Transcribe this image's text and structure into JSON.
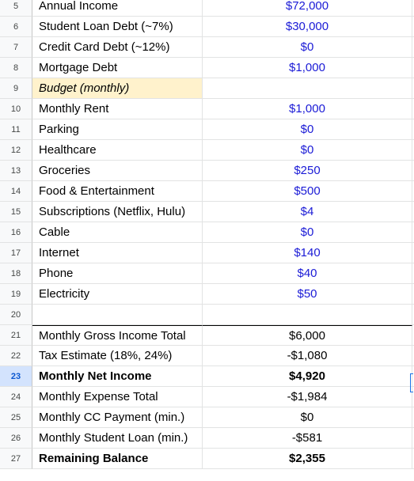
{
  "rows": [
    {
      "num": "5",
      "label": "Annual Income",
      "value": "$72,000",
      "style": "blue"
    },
    {
      "num": "6",
      "label": "Student Loan Debt (~7%)",
      "value": "$30,000",
      "style": "blue"
    },
    {
      "num": "7",
      "label": "Credit Card Debt (~12%)",
      "value": "$0",
      "style": "blue"
    },
    {
      "num": "8",
      "label": "Mortgage Debt",
      "value": "$1,000",
      "style": "blue"
    },
    {
      "num": "9",
      "label": "Budget (monthly)",
      "value": "",
      "style": "header"
    },
    {
      "num": "10",
      "label": "Monthly Rent",
      "value": "$1,000",
      "style": "blue"
    },
    {
      "num": "11",
      "label": "Parking",
      "value": "$0",
      "style": "blue"
    },
    {
      "num": "12",
      "label": "Healthcare",
      "value": "$0",
      "style": "blue"
    },
    {
      "num": "13",
      "label": "Groceries",
      "value": "$250",
      "style": "blue"
    },
    {
      "num": "14",
      "label": "Food & Entertainment",
      "value": "$500",
      "style": "blue"
    },
    {
      "num": "15",
      "label": "Subscriptions (Netflix, Hulu)",
      "value": "$4",
      "style": "blue"
    },
    {
      "num": "16",
      "label": "Cable",
      "value": "$0",
      "style": "blue"
    },
    {
      "num": "17",
      "label": "Internet",
      "value": "$140",
      "style": "blue"
    },
    {
      "num": "18",
      "label": "Phone",
      "value": "$40",
      "style": "blue"
    },
    {
      "num": "19",
      "label": "Electricity",
      "value": "$50",
      "style": "blue"
    },
    {
      "num": "20",
      "label": "",
      "value": "",
      "style": "plain"
    },
    {
      "num": "21",
      "label": "Monthly Gross Income Total",
      "value": "$6,000",
      "style": "topline"
    },
    {
      "num": "22",
      "label": "Tax Estimate (18%, 24%)",
      "value": "-$1,080",
      "style": "plain"
    },
    {
      "num": "23",
      "label": "Monthly Net Income",
      "value": "$4,920",
      "style": "bold",
      "selected": true
    },
    {
      "num": "24",
      "label": "Monthly Expense Total",
      "value": "-$1,984",
      "style": "plain"
    },
    {
      "num": "25",
      "label": "Monthly CC Payment (min.)",
      "value": "$0",
      "style": "plain"
    },
    {
      "num": "26",
      "label": "Monthly Student Loan (min.)",
      "value": "-$581",
      "style": "plain"
    },
    {
      "num": "27",
      "label": "Remaining Balance",
      "value": "$2,355",
      "style": "bold"
    }
  ]
}
